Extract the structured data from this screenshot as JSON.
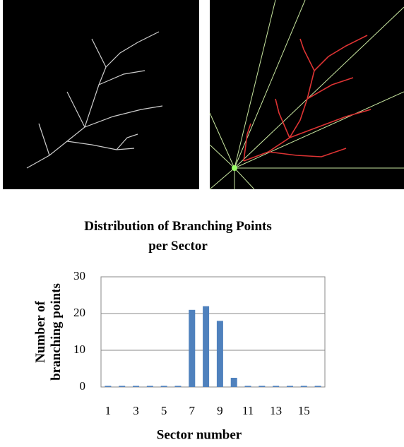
{
  "chart_data": {
    "type": "bar",
    "title": "Distribution of Branching Points per Sector",
    "x_label": "Sector number",
    "y_label": "Number of branching points",
    "categories": [
      1,
      null,
      3,
      null,
      5,
      null,
      7,
      null,
      9,
      null,
      11,
      null,
      13,
      null,
      15,
      null
    ],
    "values": [
      0.3,
      0.3,
      0.3,
      0.3,
      0.3,
      0.3,
      21,
      22,
      18,
      2.5,
      0.3,
      0.3,
      0.3,
      0.3,
      0.3,
      0.3
    ],
    "color": "#4f81bd",
    "ylim": [
      0,
      30
    ],
    "yticks": [
      0,
      10,
      20,
      30
    ],
    "grid": true
  }
}
